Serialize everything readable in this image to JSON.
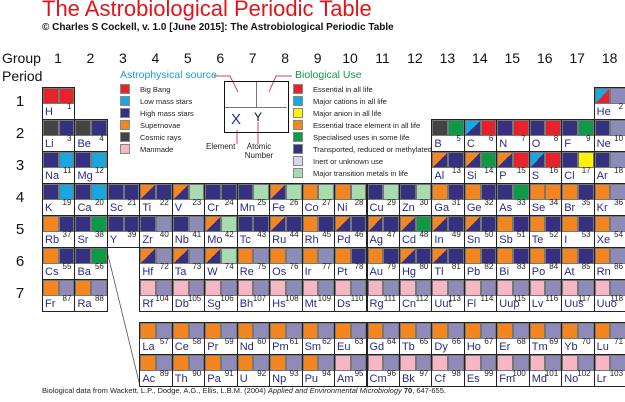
{
  "title": "The Astrobiological Periodic Table",
  "subtitle": "© Charles S Cockell, v. 1.0 [June 2015]: The Astrobiological Periodic Table",
  "axis": {
    "group_label": "Group",
    "period_label": "Period",
    "groups": [
      "1",
      "2",
      "3",
      "4",
      "5",
      "6",
      "7",
      "8",
      "9",
      "10",
      "11",
      "12",
      "13",
      "14",
      "15",
      "16",
      "17",
      "18"
    ],
    "periods": [
      "1",
      "2",
      "3",
      "4",
      "5",
      "6",
      "7"
    ]
  },
  "colors": {
    "R": "#e8212a",
    "B": "#1aa7e0",
    "N": "#35307f",
    "O": "#f5861f",
    "G": "#444444",
    "P": "#f6b6c4",
    "Y": "#fff200",
    "E": "#0d9a48",
    "L": "#8f8bb8",
    "M": "#a8dbb0"
  },
  "legend": {
    "astro_title": "Astrophysical source",
    "astro": [
      {
        "code": "R",
        "label": "Big Bang"
      },
      {
        "code": "B",
        "label": "Low mass stars"
      },
      {
        "code": "N",
        "label": "High mass stars"
      },
      {
        "code": "O",
        "label": "Supernovae"
      },
      {
        "code": "G",
        "label": "Cosmic rays"
      },
      {
        "code": "P",
        "label": "Manmade"
      }
    ],
    "bio_title": "Biological Use",
    "bio": [
      {
        "code": "R",
        "label": "Essential in all life"
      },
      {
        "code": "B",
        "label": "Major cations in all life"
      },
      {
        "code": "Y",
        "label": "Major anion in all life"
      },
      {
        "code": "O",
        "label": "Essential trace element in all life"
      },
      {
        "code": "E",
        "label": "Specialised uses in some life"
      },
      {
        "code": "N",
        "label": "Transported, reduced or methylated"
      },
      {
        "code": "L",
        "label": "Inert or unknown use",
        "swatch": "#d8d5ec"
      },
      {
        "code": "M",
        "label": "Major transition metals in life"
      }
    ],
    "key": {
      "symbol": "X",
      "number": "Y",
      "element_label": "Element",
      "number_label": "Atomic Number"
    }
  },
  "elements": [
    {
      "symbol": "H",
      "number": "1",
      "astro": "R",
      "bio": "R"
    },
    {
      "symbol": "He",
      "number": "2",
      "astro": "B/R",
      "bio": "L"
    },
    {
      "symbol": "Li",
      "number": "3",
      "astro": "G",
      "bio": "N"
    },
    {
      "symbol": "Be",
      "number": "4",
      "astro": "G",
      "bio": "N"
    },
    {
      "symbol": "B",
      "number": "5",
      "astro": "G",
      "bio": "E"
    },
    {
      "symbol": "C",
      "number": "6",
      "astro": "B/N",
      "bio": "R"
    },
    {
      "symbol": "N",
      "number": "7",
      "astro": "N",
      "bio": "R"
    },
    {
      "symbol": "O",
      "number": "8",
      "astro": "N",
      "bio": "R"
    },
    {
      "symbol": "F",
      "number": "9",
      "astro": "N",
      "bio": "E"
    },
    {
      "symbol": "Ne",
      "number": "10",
      "astro": "N",
      "bio": "L"
    },
    {
      "symbol": "Na",
      "number": "11",
      "astro": "N",
      "bio": "B"
    },
    {
      "symbol": "Mg",
      "number": "12",
      "astro": "N",
      "bio": "B"
    },
    {
      "symbol": "Al",
      "number": "13",
      "astro": "O/N",
      "bio": "N"
    },
    {
      "symbol": "Si",
      "number": "14",
      "astro": "O/N",
      "bio": "E"
    },
    {
      "symbol": "P",
      "number": "15",
      "astro": "O/N",
      "bio": "R"
    },
    {
      "symbol": "S",
      "number": "16",
      "astro": "B/N",
      "bio": "R"
    },
    {
      "symbol": "Cl",
      "number": "17",
      "astro": "N",
      "bio": "Y"
    },
    {
      "symbol": "Ar",
      "number": "18",
      "astro": "N",
      "bio": "L"
    },
    {
      "symbol": "K",
      "number": "19",
      "astro": "N",
      "bio": "B"
    },
    {
      "symbol": "Ca",
      "number": "20",
      "astro": "N",
      "bio": "B"
    },
    {
      "symbol": "Sc",
      "number": "21",
      "astro": "N",
      "bio": "N"
    },
    {
      "symbol": "Ti",
      "number": "22",
      "astro": "O/N",
      "bio": "N"
    },
    {
      "symbol": "V",
      "number": "23",
      "astro": "O/N",
      "bio": "M"
    },
    {
      "symbol": "Cr",
      "number": "24",
      "astro": "N",
      "bio": "N"
    },
    {
      "symbol": "Mn",
      "number": "25",
      "astro": "N",
      "bio": "M"
    },
    {
      "symbol": "Fe",
      "number": "26",
      "astro": "O/N",
      "bio": "M"
    },
    {
      "symbol": "Co",
      "number": "27",
      "astro": "O",
      "bio": "M"
    },
    {
      "symbol": "Ni",
      "number": "28",
      "astro": "O",
      "bio": "M"
    },
    {
      "symbol": "Cu",
      "number": "29",
      "astro": "N",
      "bio": "M"
    },
    {
      "symbol": "Zn",
      "number": "30",
      "astro": "N",
      "bio": "M"
    },
    {
      "symbol": "Ga",
      "number": "31",
      "astro": "O",
      "bio": "N"
    },
    {
      "symbol": "Ge",
      "number": "32",
      "astro": "O",
      "bio": "N"
    },
    {
      "symbol": "As",
      "number": "33",
      "astro": "N",
      "bio": "E"
    },
    {
      "symbol": "Se",
      "number": "34",
      "astro": "O",
      "bio": "O"
    },
    {
      "symbol": "Br",
      "number": "35",
      "astro": "O",
      "bio": "N"
    },
    {
      "symbol": "Kr",
      "number": "36",
      "astro": "O",
      "bio": "L"
    },
    {
      "symbol": "Rb",
      "number": "37",
      "astro": "O",
      "bio": "N"
    },
    {
      "symbol": "Sr",
      "number": "38",
      "astro": "N",
      "bio": "E"
    },
    {
      "symbol": "Y",
      "number": "39",
      "astro": "N",
      "bio": "N"
    },
    {
      "symbol": "Zr",
      "number": "40",
      "astro": "N",
      "bio": "L"
    },
    {
      "symbol": "Nb",
      "number": "41",
      "astro": "N",
      "bio": "L"
    },
    {
      "symbol": "Mo",
      "number": "42",
      "astro": "O/N",
      "bio": "M"
    },
    {
      "symbol": "Tc",
      "number": "43",
      "astro": "N",
      "bio": "N"
    },
    {
      "symbol": "Ru",
      "number": "44",
      "astro": "O/N",
      "bio": "N"
    },
    {
      "symbol": "Rh",
      "number": "45",
      "astro": "O",
      "bio": "N"
    },
    {
      "symbol": "Pd",
      "number": "46",
      "astro": "O/N",
      "bio": "N"
    },
    {
      "symbol": "Ag",
      "number": "47",
      "astro": "O/N",
      "bio": "N"
    },
    {
      "symbol": "Cd",
      "number": "48",
      "astro": "O/N",
      "bio": "E"
    },
    {
      "symbol": "In",
      "number": "49",
      "astro": "O/N",
      "bio": "N"
    },
    {
      "symbol": "Sn",
      "number": "50",
      "astro": "O/N",
      "bio": "N"
    },
    {
      "symbol": "Sb",
      "number": "51",
      "astro": "O",
      "bio": "N"
    },
    {
      "symbol": "Te",
      "number": "52",
      "astro": "O",
      "bio": "N"
    },
    {
      "symbol": "I",
      "number": "53",
      "astro": "O",
      "bio": "N"
    },
    {
      "symbol": "Xe",
      "number": "54",
      "astro": "O",
      "bio": "L"
    },
    {
      "symbol": "Cs",
      "number": "55",
      "astro": "O",
      "bio": "N"
    },
    {
      "symbol": "Ba",
      "number": "56",
      "astro": "N",
      "bio": "E"
    },
    {
      "symbol": "La",
      "number": "57",
      "astro": "O",
      "bio": "L"
    },
    {
      "symbol": "Ce",
      "number": "58",
      "astro": "O",
      "bio": "L"
    },
    {
      "symbol": "Pr",
      "number": "59",
      "astro": "O",
      "bio": "L"
    },
    {
      "symbol": "Nd",
      "number": "60",
      "astro": "O",
      "bio": "L"
    },
    {
      "symbol": "Pm",
      "number": "61",
      "astro": "O",
      "bio": "L"
    },
    {
      "symbol": "Sm",
      "number": "62",
      "astro": "O",
      "bio": "L"
    },
    {
      "symbol": "Eu",
      "number": "63",
      "astro": "O",
      "bio": "L"
    },
    {
      "symbol": "Gd",
      "number": "64",
      "astro": "O",
      "bio": "L"
    },
    {
      "symbol": "Tb",
      "number": "65",
      "astro": "O",
      "bio": "L"
    },
    {
      "symbol": "Dy",
      "number": "66",
      "astro": "O",
      "bio": "L"
    },
    {
      "symbol": "Ho",
      "number": "67",
      "astro": "O",
      "bio": "L"
    },
    {
      "symbol": "Er",
      "number": "68",
      "astro": "O",
      "bio": "L"
    },
    {
      "symbol": "Tm",
      "number": "69",
      "astro": "O",
      "bio": "L"
    },
    {
      "symbol": "Yb",
      "number": "70",
      "astro": "O",
      "bio": "L"
    },
    {
      "symbol": "Lu",
      "number": "71",
      "astro": "O",
      "bio": "L"
    },
    {
      "symbol": "Hf",
      "number": "72",
      "astro": "O/N",
      "bio": "L"
    },
    {
      "symbol": "Ta",
      "number": "73",
      "astro": "O/N",
      "bio": "L"
    },
    {
      "symbol": "W",
      "number": "74",
      "astro": "O/N",
      "bio": "M"
    },
    {
      "symbol": "Re",
      "number": "75",
      "astro": "O",
      "bio": "L"
    },
    {
      "symbol": "Os",
      "number": "76",
      "astro": "O",
      "bio": "L"
    },
    {
      "symbol": "Ir",
      "number": "77",
      "astro": "O",
      "bio": "L"
    },
    {
      "symbol": "Pt",
      "number": "78",
      "astro": "O",
      "bio": "N"
    },
    {
      "symbol": "Au",
      "number": "79",
      "astro": "O",
      "bio": "N"
    },
    {
      "symbol": "Hg",
      "number": "80",
      "astro": "O/N",
      "bio": "N"
    },
    {
      "symbol": "Tl",
      "number": "81",
      "astro": "O/N",
      "bio": "N"
    },
    {
      "symbol": "Pb",
      "number": "82",
      "astro": "O",
      "bio": "N"
    },
    {
      "symbol": "Bi",
      "number": "83",
      "astro": "O",
      "bio": "N"
    },
    {
      "symbol": "Po",
      "number": "84",
      "astro": "O",
      "bio": "N"
    },
    {
      "symbol": "At",
      "number": "85",
      "astro": "O",
      "bio": "N"
    },
    {
      "symbol": "Rn",
      "number": "86",
      "astro": "O",
      "bio": "L"
    },
    {
      "symbol": "Fr",
      "number": "87",
      "astro": "O",
      "bio": "L"
    },
    {
      "symbol": "Ra",
      "number": "88",
      "astro": "O",
      "bio": "L"
    },
    {
      "symbol": "Ac",
      "number": "89",
      "astro": "O",
      "bio": "L"
    },
    {
      "symbol": "Th",
      "number": "90",
      "astro": "O",
      "bio": "L"
    },
    {
      "symbol": "Pa",
      "number": "91",
      "astro": "O",
      "bio": "L"
    },
    {
      "symbol": "U",
      "number": "92",
      "astro": "O",
      "bio": "L"
    },
    {
      "symbol": "Np",
      "number": "93",
      "astro": "O",
      "bio": "L"
    },
    {
      "symbol": "Pu",
      "number": "94",
      "astro": "O",
      "bio": "L"
    },
    {
      "symbol": "Am",
      "number": "95",
      "astro": "P",
      "bio": "L"
    },
    {
      "symbol": "Cm",
      "number": "96",
      "astro": "P",
      "bio": "L"
    },
    {
      "symbol": "Bk",
      "number": "97",
      "astro": "P",
      "bio": "L"
    },
    {
      "symbol": "Cf",
      "number": "98",
      "astro": "P",
      "bio": "L"
    },
    {
      "symbol": "Es",
      "number": "99",
      "astro": "P",
      "bio": "L"
    },
    {
      "symbol": "Fm",
      "number": "100",
      "astro": "P",
      "bio": "L"
    },
    {
      "symbol": "Md",
      "number": "101",
      "astro": "P",
      "bio": "L"
    },
    {
      "symbol": "No",
      "number": "102",
      "astro": "P",
      "bio": "L"
    },
    {
      "symbol": "Lr",
      "number": "103",
      "astro": "P",
      "bio": "L"
    },
    {
      "symbol": "Rf",
      "number": "104",
      "astro": "P",
      "bio": "L"
    },
    {
      "symbol": "Db",
      "number": "105",
      "astro": "P",
      "bio": "L"
    },
    {
      "symbol": "Sg",
      "number": "106",
      "astro": "P",
      "bio": "L"
    },
    {
      "symbol": "Bh",
      "number": "107",
      "astro": "P",
      "bio": "L"
    },
    {
      "symbol": "Hs",
      "number": "108",
      "astro": "P",
      "bio": "L"
    },
    {
      "symbol": "Mt",
      "number": "109",
      "astro": "P",
      "bio": "L"
    },
    {
      "symbol": "Ds",
      "number": "110",
      "astro": "P",
      "bio": "L"
    },
    {
      "symbol": "Rg",
      "number": "111",
      "astro": "P",
      "bio": "L"
    },
    {
      "symbol": "Cn",
      "number": "112",
      "astro": "P",
      "bio": "L"
    },
    {
      "symbol": "Uut",
      "number": "113",
      "astro": "P",
      "bio": "L"
    },
    {
      "symbol": "Fl",
      "number": "114",
      "astro": "P",
      "bio": "L"
    },
    {
      "symbol": "Uup",
      "number": "115",
      "astro": "P",
      "bio": "L"
    },
    {
      "symbol": "Lv",
      "number": "116",
      "astro": "P",
      "bio": "L"
    },
    {
      "symbol": "Uus",
      "number": "117",
      "astro": "P",
      "bio": "L"
    },
    {
      "symbol": "Uuo",
      "number": "118",
      "astro": "P",
      "bio": "L"
    }
  ],
  "footer": {
    "prefix": "Biological data from Wackett, L.P., Dodge, A.G., Ellis, L.B.M. (2004) ",
    "journal": "Applied and Environmental Microbiology",
    "volume": "70",
    "pages": ", 647-655."
  }
}
